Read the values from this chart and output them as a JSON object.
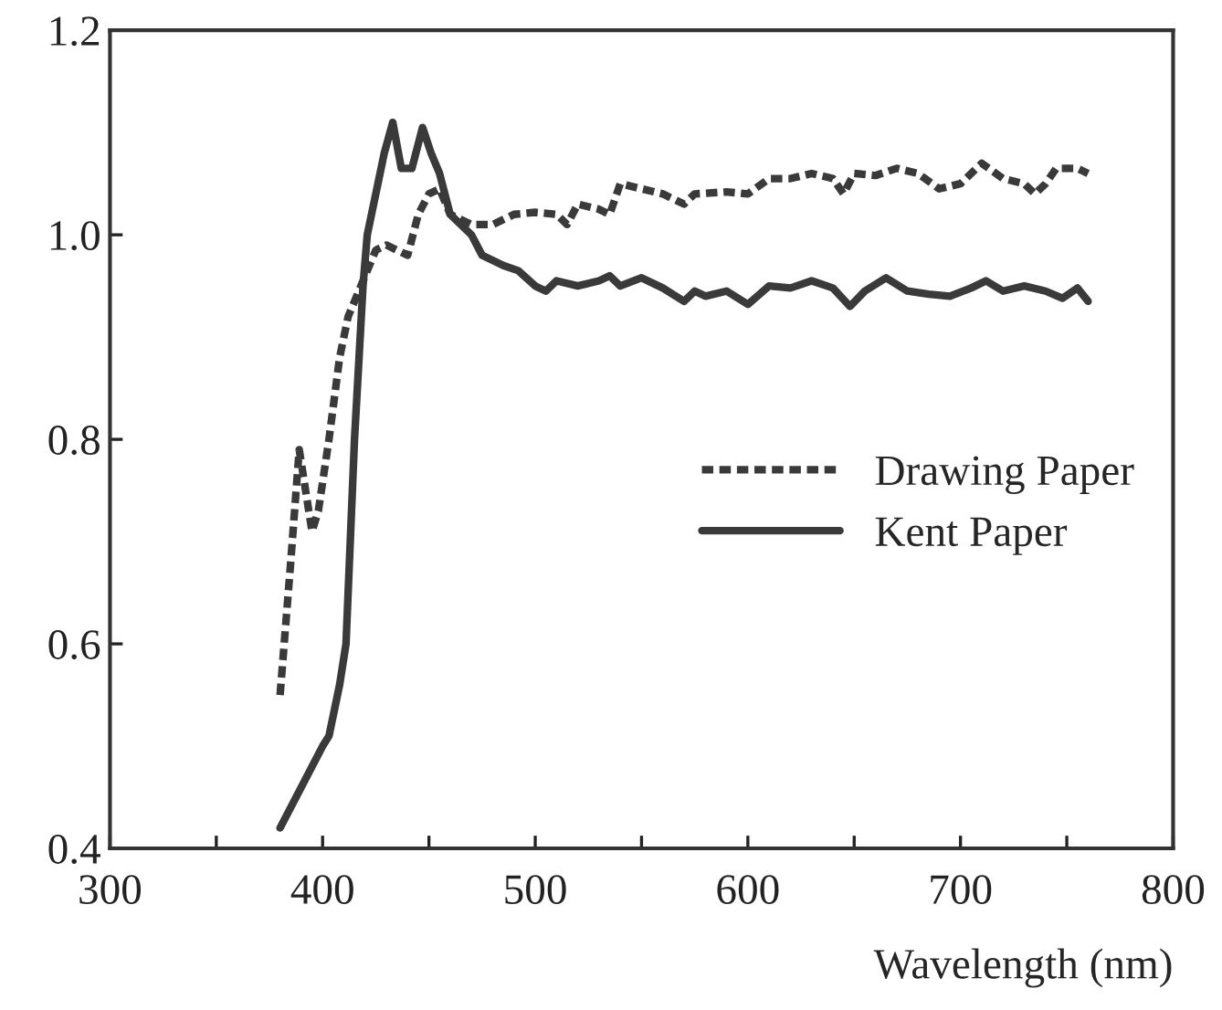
{
  "chart_data": {
    "type": "line",
    "xlabel": "Wavelength (nm)",
    "xlim": [
      300,
      800
    ],
    "ylim": [
      0.4,
      1.2
    ],
    "xticks": [
      300,
      {
        "value": 350,
        "label": null
      },
      400,
      {
        "value": 450,
        "label": null
      },
      500,
      {
        "value": 550,
        "label": null
      },
      600,
      {
        "value": 650,
        "label": null
      },
      700,
      {
        "value": 750,
        "label": null
      },
      800
    ],
    "yticks": [
      {
        "value": 0.4,
        "label": "0.4"
      },
      {
        "value": 0.6,
        "label": "0.6"
      },
      {
        "value": 0.8,
        "label": "0.8"
      },
      {
        "value": 1.0,
        "label": "1.0"
      },
      {
        "value": 1.2,
        "label": "1.2"
      }
    ],
    "grid": false,
    "legend": "right",
    "marker": "none",
    "series": [
      {
        "name": "Drawing Paper",
        "color": "#3a3a3a",
        "line_style": "dotted",
        "x": [
          380,
          385,
          389,
          392,
          395,
          398,
          403,
          408,
          412,
          416,
          420,
          425,
          430,
          435,
          440,
          445,
          450,
          455,
          460,
          470,
          480,
          490,
          500,
          510,
          515,
          520,
          530,
          535,
          540,
          550,
          560,
          570,
          575,
          590,
          600,
          610,
          620,
          630,
          640,
          645,
          650,
          660,
          670,
          680,
          690,
          700,
          710,
          720,
          730,
          735,
          740,
          745,
          755,
          760
        ],
        "values": [
          0.55,
          0.68,
          0.79,
          0.75,
          0.71,
          0.73,
          0.8,
          0.88,
          0.92,
          0.94,
          0.96,
          0.985,
          0.99,
          0.985,
          0.98,
          1.02,
          1.04,
          1.045,
          1.02,
          1.01,
          1.01,
          1.02,
          1.022,
          1.02,
          1.01,
          1.03,
          1.025,
          1.02,
          1.05,
          1.045,
          1.04,
          1.03,
          1.04,
          1.042,
          1.04,
          1.055,
          1.055,
          1.06,
          1.055,
          1.04,
          1.06,
          1.058,
          1.065,
          1.06,
          1.045,
          1.05,
          1.07,
          1.055,
          1.05,
          1.04,
          1.05,
          1.065,
          1.065,
          1.06
        ]
      },
      {
        "name": "Kent Paper",
        "color": "#3a3a3a",
        "line_style": "solid",
        "x": [
          380,
          390,
          400,
          403,
          408,
          411,
          415,
          419,
          421,
          425,
          429,
          433,
          437,
          442,
          447,
          451,
          455,
          460,
          470,
          475,
          485,
          492,
          500,
          505,
          510,
          520,
          530,
          535,
          540,
          550,
          560,
          570,
          575,
          580,
          590,
          600,
          610,
          620,
          630,
          640,
          648,
          655,
          665,
          675,
          685,
          695,
          705,
          712,
          720,
          730,
          740,
          748,
          755,
          760
        ],
        "values": [
          0.42,
          0.46,
          0.5,
          0.51,
          0.56,
          0.6,
          0.8,
          0.95,
          1.0,
          1.04,
          1.08,
          1.11,
          1.065,
          1.065,
          1.105,
          1.08,
          1.06,
          1.02,
          1.0,
          0.98,
          0.97,
          0.965,
          0.95,
          0.945,
          0.955,
          0.95,
          0.955,
          0.96,
          0.95,
          0.958,
          0.948,
          0.935,
          0.945,
          0.94,
          0.945,
          0.932,
          0.95,
          0.948,
          0.955,
          0.948,
          0.93,
          0.945,
          0.958,
          0.945,
          0.942,
          0.94,
          0.948,
          0.955,
          0.945,
          0.95,
          0.945,
          0.938,
          0.948,
          0.935
        ]
      }
    ]
  }
}
